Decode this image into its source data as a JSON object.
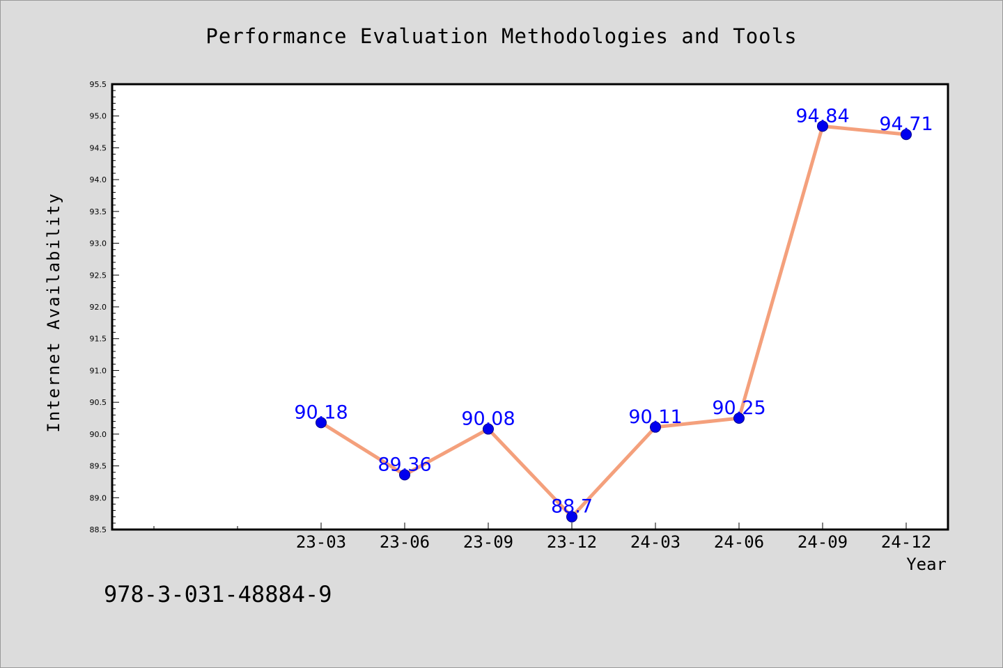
{
  "chart_data": {
    "type": "line",
    "title": "Performance Evaluation Methodologies and Tools",
    "xlabel": "Year",
    "ylabel": "Internet Availability",
    "categories": [
      "23-03",
      "23-06",
      "23-09",
      "23-12",
      "24-03",
      "24-06",
      "24-09",
      "24-12"
    ],
    "series": [
      {
        "values": [
          90.18,
          89.36,
          90.08,
          88.7,
          90.11,
          90.25,
          94.84,
          94.71
        ],
        "labels": [
          "90.18",
          "89.36",
          "90.08",
          "88.7",
          "90.11",
          "90.25",
          "94.84",
          "94.71"
        ]
      }
    ],
    "ylim": [
      88.5,
      95.5
    ],
    "yticks": [
      "88.5",
      "89.0",
      "89.5",
      "90.0",
      "90.5",
      "91.0",
      "91.5",
      "92.0",
      "92.5",
      "93.0",
      "93.5",
      "94.0",
      "94.5",
      "95.0",
      "95.5"
    ],
    "grid": false,
    "legend": "none",
    "colors": {
      "line": "#f4a07c",
      "marker": "#0000ee",
      "data_label": "#0000ff",
      "background": "#dcdcdc",
      "plot_area": "#ffffff"
    }
  },
  "footnote": "978-3-031-48884-9"
}
